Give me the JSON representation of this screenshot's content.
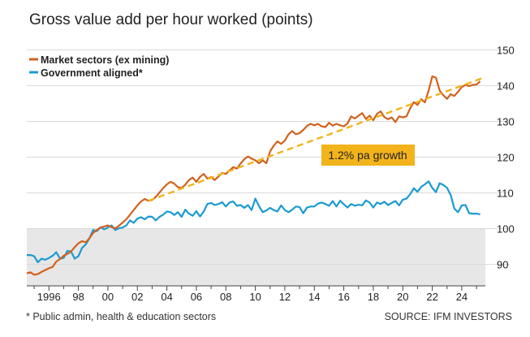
{
  "title": "Gross value add per hour worked (points)",
  "footnote": "* Public admin, health & education sectors",
  "source": "SOURCE: IFM INVESTORS",
  "colors": {
    "market": "#d2611d",
    "government": "#1b9ad2",
    "trend": "#f2b31b",
    "below_100_band": "#e7e7e7",
    "grid": "#d9d9d9"
  },
  "chart_data": {
    "type": "line",
    "x_tick_labels": [
      "1996",
      "98",
      "00",
      "02",
      "04",
      "06",
      "08",
      "10",
      "12",
      "14",
      "16",
      "18",
      "20",
      "22",
      "24"
    ],
    "x_ticks": [
      1996,
      1998,
      2000,
      2002,
      2004,
      2006,
      2008,
      2010,
      2012,
      2014,
      2016,
      2018,
      2020,
      2022,
      2024
    ],
    "xlim": [
      1994.5,
      2025.6
    ],
    "y_tick_labels": [
      "90",
      "100",
      "110",
      "120",
      "130",
      "140",
      "150"
    ],
    "y_ticks": [
      90,
      100,
      110,
      120,
      130,
      140,
      150
    ],
    "ylim": [
      84,
      151
    ],
    "grid": true,
    "shaded_below": 100,
    "legend": "top-left",
    "annotation": "1.2% pa growth",
    "series": [
      {
        "name": "Market sectors (ex mining)",
        "color": "#d2611d",
        "x": [
          1994.5,
          1994.75,
          1995.0,
          1995.25,
          1995.5,
          1995.75,
          1996.0,
          1996.25,
          1996.5,
          1996.75,
          1997.0,
          1997.25,
          1997.5,
          1997.75,
          1998.0,
          1998.25,
          1998.5,
          1998.75,
          1999.0,
          1999.25,
          1999.5,
          1999.75,
          2000.0,
          2000.25,
          2000.5,
          2000.75,
          2001.0,
          2001.25,
          2001.5,
          2001.75,
          2002.0,
          2002.25,
          2002.5,
          2002.75,
          2003.0,
          2003.25,
          2003.5,
          2003.75,
          2004.0,
          2004.25,
          2004.5,
          2004.75,
          2005.0,
          2005.25,
          2005.5,
          2005.75,
          2006.0,
          2006.25,
          2006.5,
          2006.75,
          2007.0,
          2007.25,
          2007.5,
          2007.75,
          2008.0,
          2008.25,
          2008.5,
          2008.75,
          2009.0,
          2009.25,
          2009.5,
          2009.75,
          2010.0,
          2010.25,
          2010.5,
          2010.75,
          2011.0,
          2011.25,
          2011.5,
          2011.75,
          2012.0,
          2012.25,
          2012.5,
          2012.75,
          2013.0,
          2013.25,
          2013.5,
          2013.75,
          2014.0,
          2014.25,
          2014.5,
          2014.75,
          2015.0,
          2015.25,
          2015.5,
          2015.75,
          2016.0,
          2016.25,
          2016.5,
          2016.75,
          2017.0,
          2017.25,
          2017.5,
          2017.75,
          2018.0,
          2018.25,
          2018.5,
          2018.75,
          2019.0,
          2019.25,
          2019.5,
          2019.75,
          2020.0,
          2020.25,
          2020.5,
          2020.75,
          2021.0,
          2021.25,
          2021.5,
          2021.75,
          2022.0,
          2022.25,
          2022.5,
          2022.75,
          2023.0,
          2023.25,
          2023.5,
          2023.75,
          2024.0,
          2024.25,
          2024.5,
          2024.75,
          2025.0,
          2025.25
        ],
        "values": [
          87.5,
          87.8,
          87.1,
          87.3,
          87.9,
          88.4,
          88.9,
          89.3,
          90.8,
          91.5,
          92.4,
          92.9,
          93.6,
          94.8,
          95.9,
          96.5,
          96.2,
          97.3,
          98.8,
          99.6,
          100.3,
          100.6,
          100.9,
          100.4,
          100.1,
          100.8,
          101.7,
          102.6,
          103.9,
          105.2,
          106.5,
          107.6,
          108.3,
          107.8,
          108.0,
          108.9,
          110.1,
          111.3,
          112.4,
          113.1,
          112.6,
          111.6,
          111.4,
          112.3,
          113.6,
          114.3,
          113.1,
          114.5,
          115.3,
          114.0,
          114.4,
          113.6,
          114.6,
          115.6,
          115.3,
          116.3,
          117.2,
          116.8,
          118.2,
          119.4,
          120.2,
          119.6,
          119.1,
          118.3,
          119.1,
          118.3,
          121.6,
          123.2,
          124.4,
          123.7,
          124.6,
          126.4,
          127.3,
          126.4,
          126.7,
          127.6,
          128.7,
          129.3,
          128.9,
          129.3,
          128.6,
          128.4,
          129.6,
          128.8,
          129.3,
          128.9,
          128.6,
          129.4,
          131.4,
          130.8,
          131.6,
          132.3,
          130.7,
          131.6,
          130.3,
          132.1,
          132.8,
          131.2,
          130.6,
          131.1,
          129.8,
          131.4,
          131.1,
          131.4,
          133.6,
          135.4,
          134.6,
          136.2,
          135.3,
          138.6,
          142.6,
          142.2,
          138.6,
          137.3,
          136.3,
          137.6,
          137.1,
          138.3,
          139.6,
          140.2,
          139.9,
          140.2,
          140.3,
          141.2
        ]
      },
      {
        "name": "Government aligned*",
        "color": "#1b9ad2",
        "x": [
          1994.5,
          1994.75,
          1995.0,
          1995.25,
          1995.5,
          1995.75,
          1996.0,
          1996.25,
          1996.5,
          1996.75,
          1997.0,
          1997.25,
          1997.5,
          1997.75,
          1998.0,
          1998.25,
          1998.5,
          1998.75,
          1999.0,
          1999.25,
          1999.5,
          1999.75,
          2000.0,
          2000.25,
          2000.5,
          2000.75,
          2001.0,
          2001.25,
          2001.5,
          2001.75,
          2002.0,
          2002.25,
          2002.5,
          2002.75,
          2003.0,
          2003.25,
          2003.5,
          2003.75,
          2004.0,
          2004.25,
          2004.5,
          2004.75,
          2005.0,
          2005.25,
          2005.5,
          2005.75,
          2006.0,
          2006.25,
          2006.5,
          2006.75,
          2007.0,
          2007.25,
          2007.5,
          2007.75,
          2008.0,
          2008.25,
          2008.5,
          2008.75,
          2009.0,
          2009.25,
          2009.5,
          2009.75,
          2010.0,
          2010.25,
          2010.5,
          2010.75,
          2011.0,
          2011.25,
          2011.5,
          2011.75,
          2012.0,
          2012.25,
          2012.5,
          2012.75,
          2013.0,
          2013.25,
          2013.5,
          2013.75,
          2014.0,
          2014.25,
          2014.5,
          2014.75,
          2015.0,
          2015.25,
          2015.5,
          2015.75,
          2016.0,
          2016.25,
          2016.5,
          2016.75,
          2017.0,
          2017.25,
          2017.5,
          2017.75,
          2018.0,
          2018.25,
          2018.5,
          2018.75,
          2019.0,
          2019.25,
          2019.5,
          2019.75,
          2020.0,
          2020.25,
          2020.5,
          2020.75,
          2021.0,
          2021.25,
          2021.5,
          2021.75,
          2022.0,
          2022.25,
          2022.5,
          2022.75,
          2023.0,
          2023.25,
          2023.5,
          2023.75,
          2024.0,
          2024.25,
          2024.5,
          2024.75,
          2025.0,
          2025.25
        ],
        "values": [
          92.6,
          92.6,
          92.3,
          90.6,
          91.6,
          91.3,
          91.8,
          92.4,
          93.4,
          91.6,
          91.8,
          93.8,
          93.6,
          91.6,
          92.3,
          94.6,
          95.6,
          97.3,
          99.6,
          99.3,
          100.4,
          99.8,
          100.3,
          100.9,
          99.6,
          100.1,
          100.3,
          100.9,
          102.3,
          101.6,
          102.8,
          103.2,
          102.6,
          103.4,
          103.3,
          102.3,
          103.3,
          103.9,
          104.8,
          104.6,
          103.8,
          104.6,
          103.3,
          105.3,
          104.2,
          103.6,
          104.9,
          103.4,
          104.8,
          106.9,
          107.2,
          106.6,
          106.9,
          107.4,
          106.2,
          107.3,
          107.6,
          106.4,
          106.6,
          105.8,
          106.6,
          105.2,
          108.4,
          106.3,
          104.6,
          105.1,
          105.8,
          105.2,
          104.8,
          106.5,
          105.2,
          104.6,
          105.3,
          106.2,
          106.0,
          104.3,
          105.9,
          106.2,
          106.2,
          107.0,
          107.3,
          106.9,
          106.4,
          107.7,
          106.2,
          107.8,
          106.8,
          105.9,
          106.9,
          106.4,
          106.7,
          106.5,
          107.9,
          107.3,
          105.9,
          107.3,
          106.9,
          107.5,
          106.6,
          107.2,
          107.7,
          106.5,
          108.1,
          108.4,
          109.6,
          111.3,
          110.3,
          111.7,
          112.4,
          113.2,
          111.4,
          110.2,
          112.7,
          112.2,
          111.4,
          109.4,
          105.6,
          104.6,
          106.5,
          106.6,
          104.3,
          104.2,
          104.2,
          104.0
        ]
      }
    ],
    "trend_line": {
      "x": [
        2002.75,
        2025.6
      ],
      "values": [
        107.8,
        142.4
      ]
    }
  }
}
